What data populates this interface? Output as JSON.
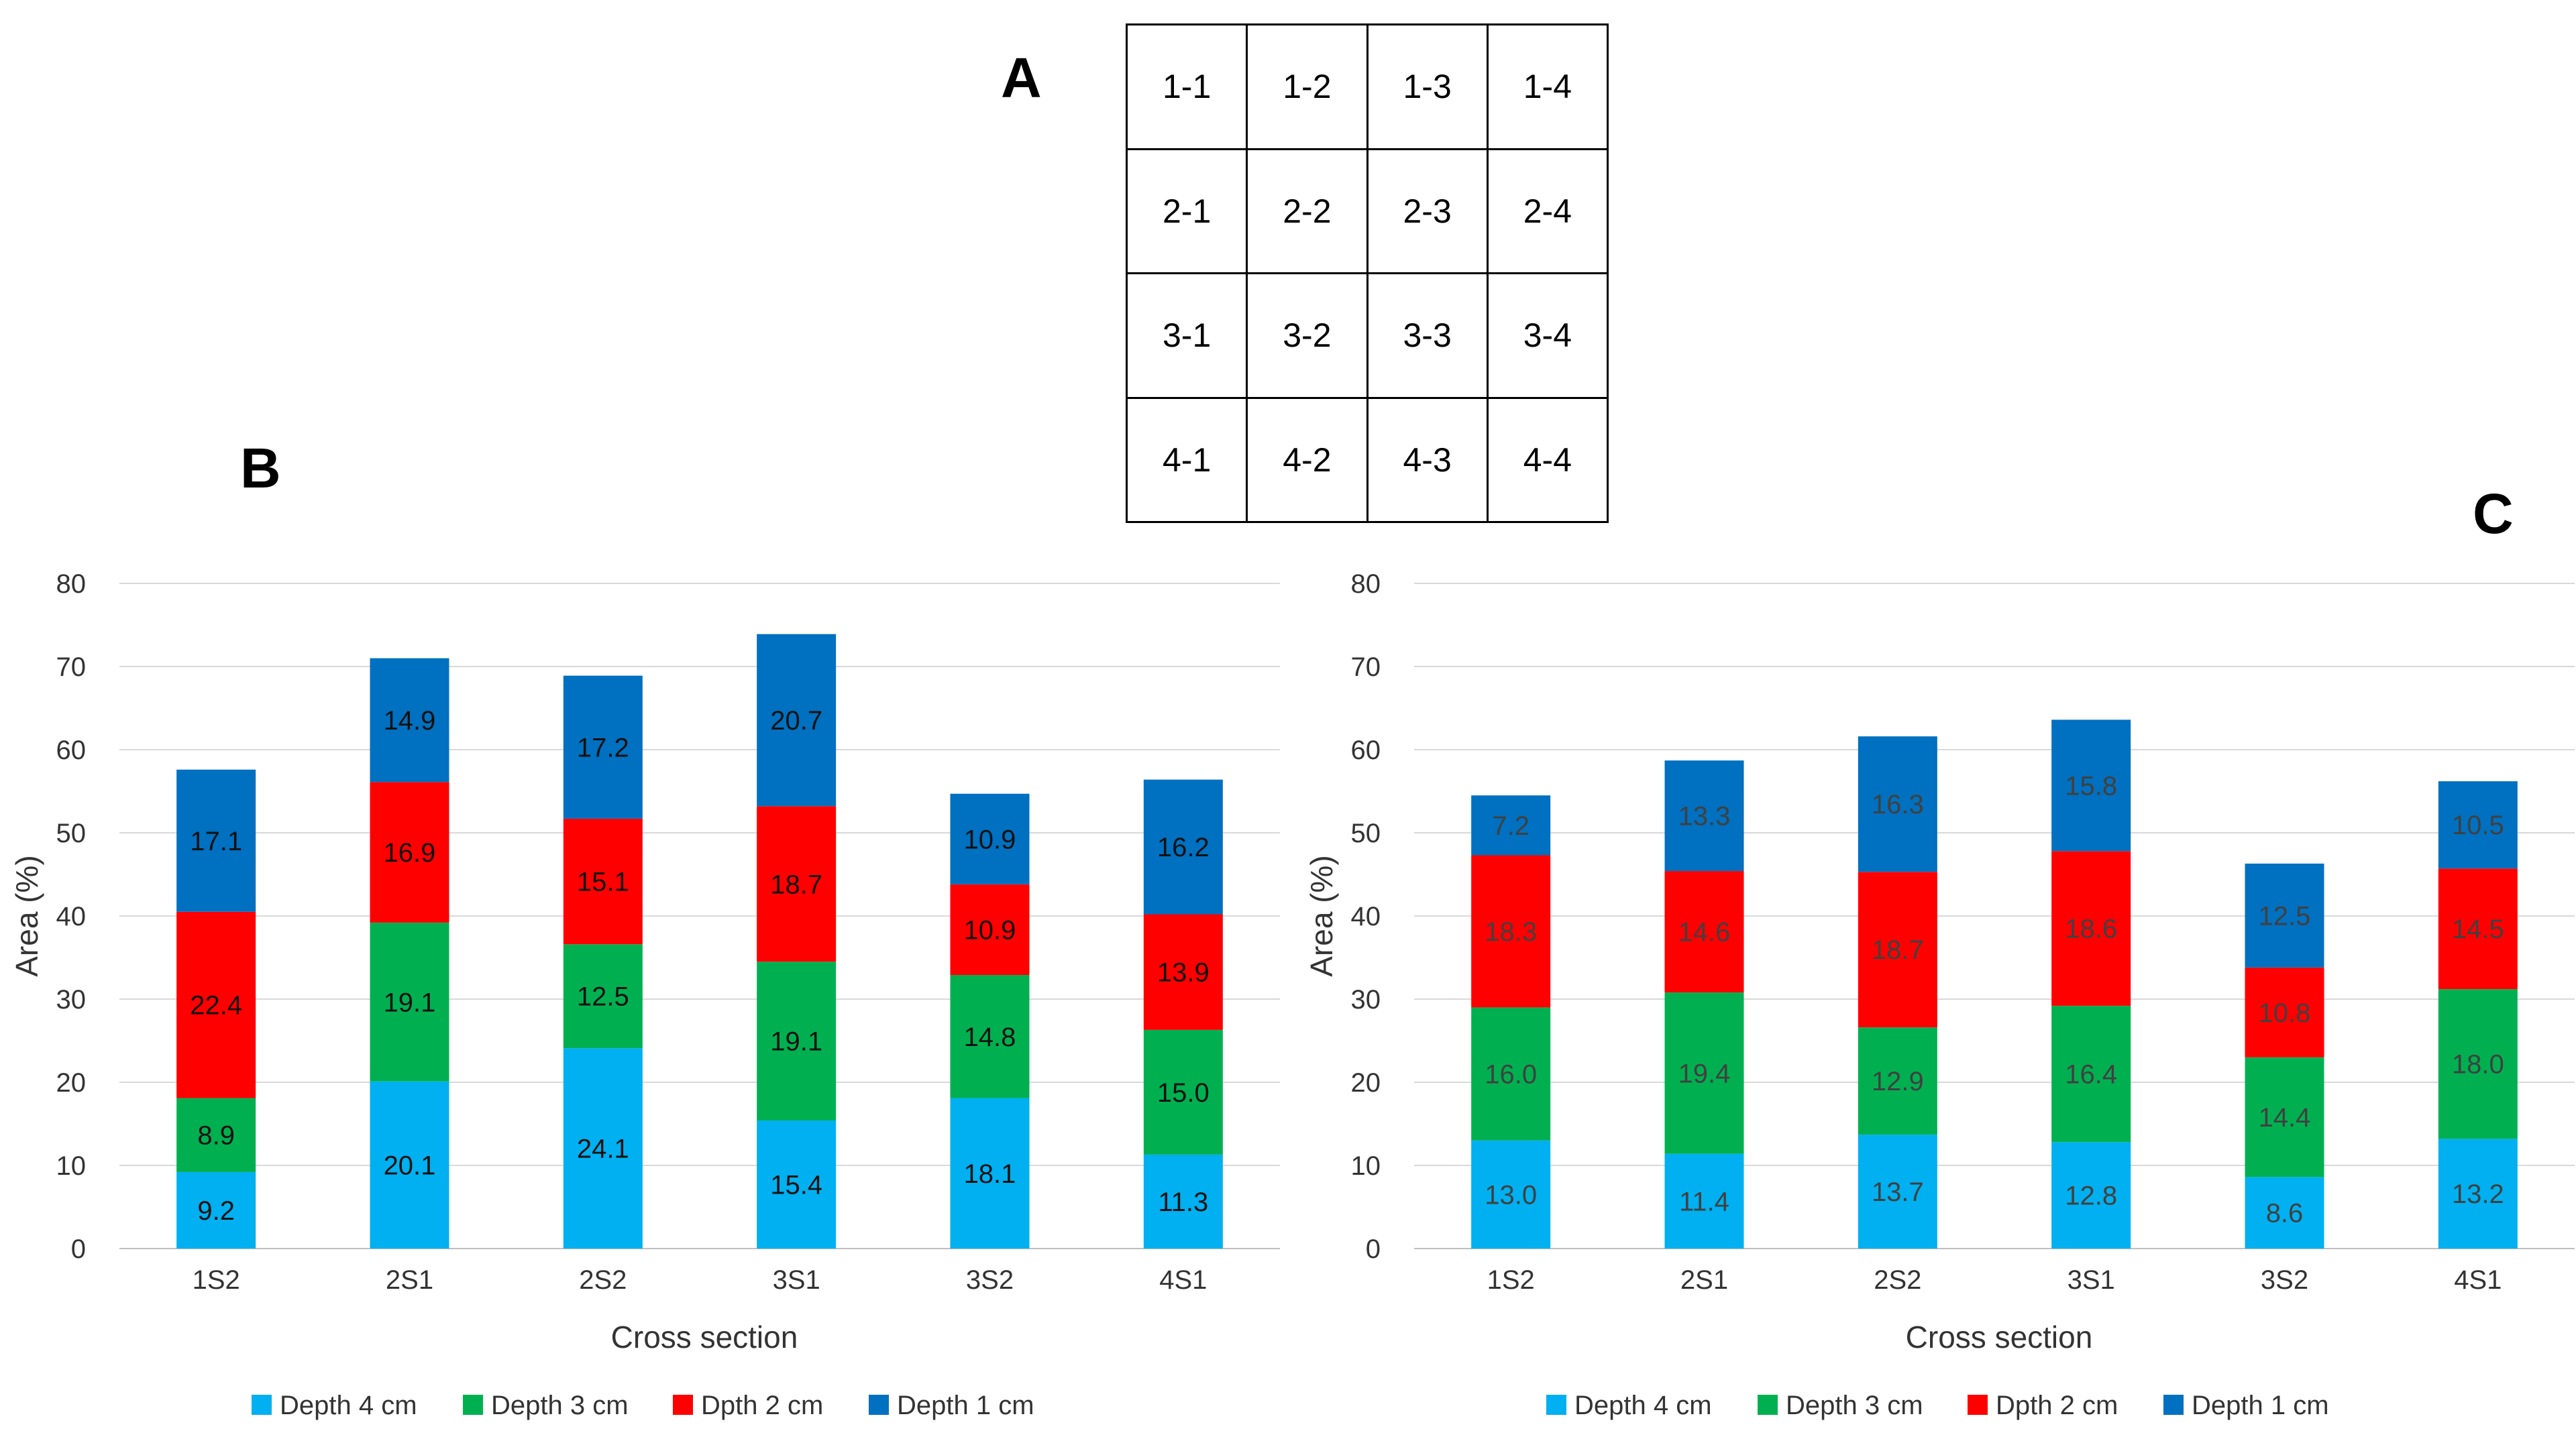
{
  "panel_labels": {
    "a": "A",
    "b": "B",
    "c": "C"
  },
  "grid": [
    [
      "1-1",
      "1-2",
      "1-3",
      "1-4"
    ],
    [
      "2-1",
      "2-2",
      "2-3",
      "2-4"
    ],
    [
      "3-1",
      "3-2",
      "3-3",
      "3-4"
    ],
    [
      "4-1",
      "4-2",
      "4-3",
      "4-4"
    ]
  ],
  "chart_data": [
    {
      "id": "B",
      "type": "bar",
      "stacked": true,
      "categories": [
        "1S2",
        "2S1",
        "2S2",
        "3S1",
        "3S2",
        "4S1"
      ],
      "series": [
        {
          "name": "Depth 4 cm",
          "color": "#00B0F0",
          "label_color": "#111111",
          "values": [
            9.2,
            20.1,
            24.1,
            15.4,
            18.1,
            11.3
          ]
        },
        {
          "name": "Depth 3 cm",
          "color": "#00B050",
          "label_color": "#111111",
          "values": [
            8.9,
            19.1,
            12.5,
            19.1,
            14.8,
            15.0
          ]
        },
        {
          "name": "Dpth 2 cm",
          "color": "#FF0000",
          "label_color": "#111111",
          "values": [
            22.4,
            16.9,
            15.1,
            18.7,
            10.9,
            13.9
          ]
        },
        {
          "name": "Depth 1 cm",
          "color": "#0070C0",
          "label_color": "#111111",
          "values": [
            17.1,
            14.9,
            17.2,
            20.7,
            10.9,
            16.2
          ]
        }
      ],
      "xlabel": "Cross section",
      "ylabel": "Area (%)",
      "ylim": [
        0,
        80
      ],
      "yticks": [
        "0",
        "10",
        "20",
        "30",
        "40",
        "50",
        "60",
        "70",
        "80"
      ],
      "grid": true,
      "legend": "bottom"
    },
    {
      "id": "C",
      "type": "bar",
      "stacked": true,
      "categories": [
        "1S2",
        "2S1",
        "2S2",
        "3S1",
        "3S2",
        "4S1"
      ],
      "series": [
        {
          "name": "Depth 4 cm",
          "color": "#00B0F0",
          "label_color": "#404040",
          "values": [
            13.0,
            11.4,
            13.7,
            12.8,
            8.6,
            13.2
          ]
        },
        {
          "name": "Depth 3 cm",
          "color": "#00B050",
          "label_color": "#404040",
          "values": [
            16.0,
            19.4,
            12.9,
            16.4,
            14.4,
            18.0
          ]
        },
        {
          "name": "Dpth 2 cm",
          "color": "#FF0000",
          "label_color": "#404040",
          "values": [
            18.3,
            14.6,
            18.7,
            18.6,
            10.8,
            14.5
          ]
        },
        {
          "name": "Depth 1 cm",
          "color": "#0070C0",
          "label_color": "#404040",
          "values": [
            7.2,
            13.3,
            16.3,
            15.8,
            12.5,
            10.5
          ]
        }
      ],
      "xlabel": "Cross section",
      "ylabel": "Area (%)",
      "ylim": [
        0,
        80
      ],
      "yticks": [
        "0",
        "10",
        "20",
        "30",
        "40",
        "50",
        "60",
        "70",
        "80"
      ],
      "grid": true,
      "legend": "bottom"
    }
  ]
}
